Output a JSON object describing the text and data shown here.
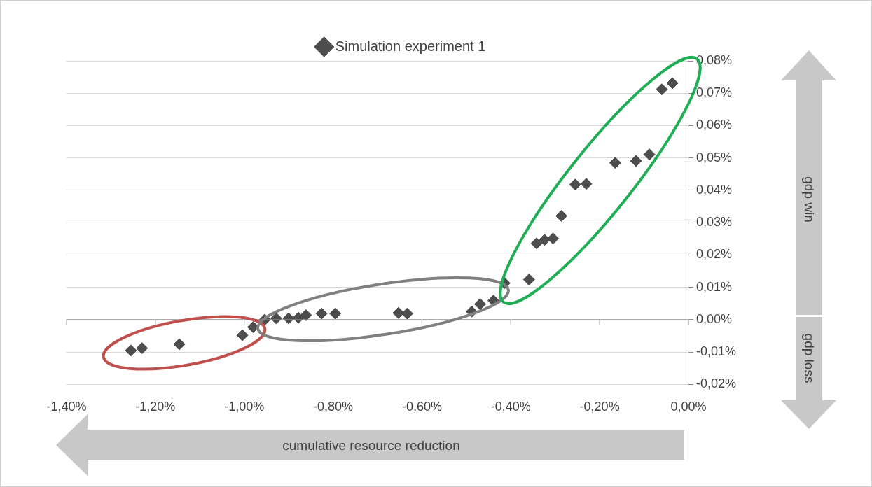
{
  "chart_data": {
    "type": "scatter",
    "xlabel": "cumulative resource reduction",
    "annotations": [
      "gdp win",
      "gdp loss"
    ],
    "series": [
      {
        "name": "Simulation experiment 1",
        "color": "#4d4d4d",
        "x": [
          -1.255,
          -1.23,
          -1.146,
          -1.004,
          -0.98,
          -0.954,
          -0.928,
          -0.9,
          -0.878,
          -0.861,
          -0.826,
          -0.795,
          -0.653,
          -0.633,
          -0.488,
          -0.469,
          -0.439,
          -0.414,
          -0.359,
          -0.342,
          -0.324,
          -0.305,
          -0.286,
          -0.255,
          -0.23,
          -0.165,
          -0.118,
          -0.088,
          -0.06,
          -0.036
        ],
        "values": [
          -0.0095,
          -0.0088,
          -0.0076,
          -0.0048,
          -0.0023,
          0,
          0.0004,
          0.0004,
          0.0006,
          0.0014,
          0.0019,
          0.0019,
          0.0021,
          0.0019,
          0.0025,
          0.0048,
          0.0059,
          0.0113,
          0.0124,
          0.0236,
          0.0247,
          0.0251,
          0.0321,
          0.0418,
          0.042,
          0.0485,
          0.0491,
          0.0511,
          0.0712,
          0.0731
        ]
      }
    ],
    "xlim": [
      -1.4,
      0
    ],
    "xticks": [
      {
        "value": -1.4,
        "label": "-1,40%"
      },
      {
        "value": -1.2,
        "label": "-1,20%"
      },
      {
        "value": -1,
        "label": "-1,00%"
      },
      {
        "value": -0.8,
        "label": "-0,80%"
      },
      {
        "value": -0.6,
        "label": "-0,60%"
      },
      {
        "value": -0.4,
        "label": "-0,40%"
      },
      {
        "value": -0.2,
        "label": "-0,20%"
      },
      {
        "value": 0,
        "label": "0,00%"
      }
    ],
    "ylim": [
      -0.02,
      0.08
    ],
    "yticks": [
      {
        "value": -0.02,
        "label": "-0,02%"
      },
      {
        "value": -0.01,
        "label": "-0,01%"
      },
      {
        "value": 0,
        "label": "0,00%"
      },
      {
        "value": 0.01,
        "label": "0,01%"
      },
      {
        "value": 0.02,
        "label": "0,02%"
      },
      {
        "value": 0.03,
        "label": "0,03%"
      },
      {
        "value": 0.04,
        "label": "0,04%"
      },
      {
        "value": 0.05,
        "label": "0,05%"
      },
      {
        "value": 0.06,
        "label": "0,06%"
      },
      {
        "value": 0.07,
        "label": "0,07%"
      },
      {
        "value": 0.08,
        "label": "0,08%"
      }
    ],
    "grid": "y",
    "legend": "top",
    "marker": "diamond"
  }
}
